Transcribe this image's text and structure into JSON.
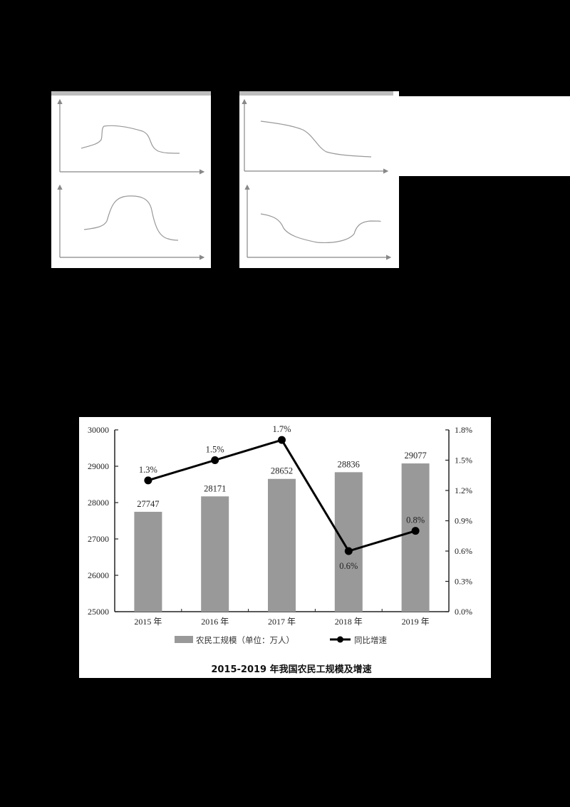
{
  "sketches": [
    {
      "id": "A",
      "shape": "rise-plateau-fall",
      "description": "low start, sharp rise, flat top, sharp fall, low end"
    },
    {
      "id": "B",
      "shape": "high-then-fall",
      "description": "high flat start, gradual then sharp fall, low tail"
    },
    {
      "id": "C",
      "shape": "bell",
      "description": "low start, smooth rise, rounded peak, fall, low end"
    },
    {
      "id": "D",
      "shape": "dip-then-rise",
      "description": "medium start, falls into a broad trough, rises back"
    }
  ],
  "chart_data": {
    "type": "bar+line",
    "title": "2015-2019 年我国农民工规模及增速",
    "categories": [
      "2015 年",
      "2016 年",
      "2017 年",
      "2018 年",
      "2019 年"
    ],
    "series": [
      {
        "name": "农民工规模（单位：万人）",
        "type": "bar",
        "axis": "left",
        "color": "#999999",
        "values": [
          27747,
          28171,
          28652,
          28836,
          29077
        ],
        "labels": [
          "27747",
          "28171",
          "28652",
          "28836",
          "29077"
        ]
      },
      {
        "name": "同比增速",
        "type": "line",
        "axis": "right",
        "color": "#000000",
        "values": [
          1.3,
          1.5,
          1.7,
          0.6,
          0.8
        ],
        "labels": [
          "1.3%",
          "1.5%",
          "1.7%",
          "0.6%",
          "0.8%"
        ]
      }
    ],
    "left_axis": {
      "min": 25000,
      "max": 30000,
      "ticks": [
        "30000",
        "29000",
        "28000",
        "27000",
        "26000",
        "25000"
      ]
    },
    "right_axis": {
      "min": 0,
      "max": 1.8,
      "ticks": [
        "1.8%",
        "1.5%",
        "1.2%",
        "0.9%",
        "0.6%",
        "0.3%",
        "0.0%"
      ]
    },
    "legend": {
      "bar_label": "农民工规模（单位：万人）",
      "line_label": "同比增速",
      "position": "bottom"
    },
    "grid": false
  }
}
